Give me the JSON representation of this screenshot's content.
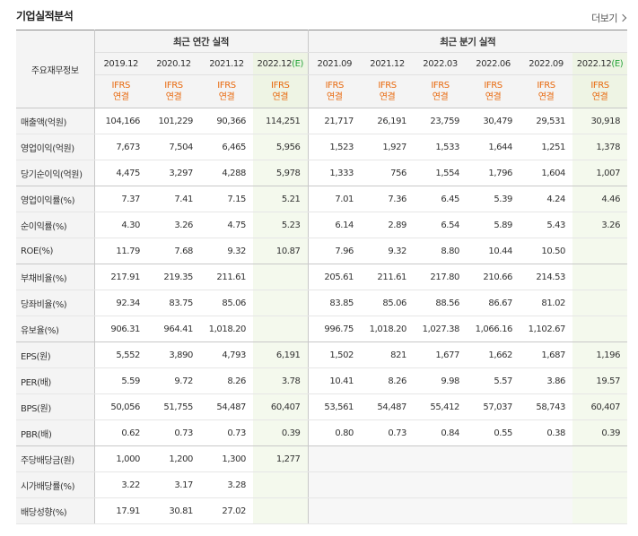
{
  "header": {
    "title": "기업실적분석",
    "more_label": "더보기"
  },
  "table": {
    "row_header_label": "주요재무정보",
    "annual_group_label": "최근 연간 실적",
    "quarter_group_label": "최근 분기 실적",
    "ifrs_label": "IFRS",
    "basis_label": "연결",
    "annual_dates": [
      "2019.12",
      "2020.12",
      "2021.12",
      "2022.12"
    ],
    "quarter_dates": [
      "2021.09",
      "2021.12",
      "2022.03",
      "2022.06",
      "2022.09",
      "2022.12"
    ],
    "estimate_mark": "(E)",
    "rows": [
      {
        "label": "매출액(억원)",
        "values": [
          "104,166",
          "101,229",
          "90,366",
          "114,251",
          "21,717",
          "26,191",
          "23,759",
          "30,479",
          "29,531",
          "30,918"
        ]
      },
      {
        "label": "영업이익(억원)",
        "values": [
          "7,673",
          "7,504",
          "6,465",
          "5,956",
          "1,523",
          "1,927",
          "1,533",
          "1,644",
          "1,251",
          "1,378"
        ]
      },
      {
        "label": "당기순이익(억원)",
        "values": [
          "4,475",
          "3,297",
          "4,288",
          "5,978",
          "1,333",
          "756",
          "1,554",
          "1,796",
          "1,604",
          "1,007"
        ]
      },
      {
        "label": "영업이익률(%)",
        "values": [
          "7.37",
          "7.41",
          "7.15",
          "5.21",
          "7.01",
          "7.36",
          "6.45",
          "5.39",
          "4.24",
          "4.46"
        ]
      },
      {
        "label": "순이익률(%)",
        "values": [
          "4.30",
          "3.26",
          "4.75",
          "5.23",
          "6.14",
          "2.89",
          "6.54",
          "5.89",
          "5.43",
          "3.26"
        ]
      },
      {
        "label": "ROE(%)",
        "values": [
          "11.79",
          "7.68",
          "9.32",
          "10.87",
          "7.96",
          "9.32",
          "8.80",
          "10.44",
          "10.50",
          ""
        ]
      },
      {
        "label": "부채비율(%)",
        "values": [
          "217.91",
          "219.35",
          "211.61",
          "",
          "205.61",
          "211.61",
          "217.80",
          "210.66",
          "214.53",
          ""
        ]
      },
      {
        "label": "당좌비율(%)",
        "values": [
          "92.34",
          "83.75",
          "85.06",
          "",
          "83.85",
          "85.06",
          "88.56",
          "86.67",
          "81.02",
          ""
        ]
      },
      {
        "label": "유보율(%)",
        "values": [
          "906.31",
          "964.41",
          "1,018.20",
          "",
          "996.75",
          "1,018.20",
          "1,027.38",
          "1,066.16",
          "1,102.67",
          ""
        ]
      },
      {
        "label": "EPS(원)",
        "values": [
          "5,552",
          "3,890",
          "4,793",
          "6,191",
          "1,502",
          "821",
          "1,677",
          "1,662",
          "1,687",
          "1,196"
        ]
      },
      {
        "label": "PER(배)",
        "values": [
          "5.59",
          "9.72",
          "8.26",
          "3.78",
          "10.41",
          "8.26",
          "9.98",
          "5.57",
          "3.86",
          "19.57"
        ]
      },
      {
        "label": "BPS(원)",
        "values": [
          "50,056",
          "51,755",
          "54,487",
          "60,407",
          "53,561",
          "54,487",
          "55,412",
          "57,037",
          "58,743",
          "60,407"
        ]
      },
      {
        "label": "PBR(배)",
        "values": [
          "0.62",
          "0.73",
          "0.73",
          "0.39",
          "0.80",
          "0.73",
          "0.84",
          "0.55",
          "0.38",
          "0.39"
        ]
      },
      {
        "label": "주당배당금(원)",
        "values": [
          "1,000",
          "1,200",
          "1,300",
          "1,277",
          "",
          "",
          "",
          "",
          "",
          ""
        ]
      },
      {
        "label": "시가배당률(%)",
        "values": [
          "3.22",
          "3.17",
          "3.28",
          "",
          "",
          "",
          "",
          "",
          "",
          ""
        ]
      },
      {
        "label": "배당성향(%)",
        "values": [
          "17.91",
          "30.81",
          "27.02",
          "",
          "",
          "",
          "",
          "",
          "",
          ""
        ]
      }
    ]
  }
}
